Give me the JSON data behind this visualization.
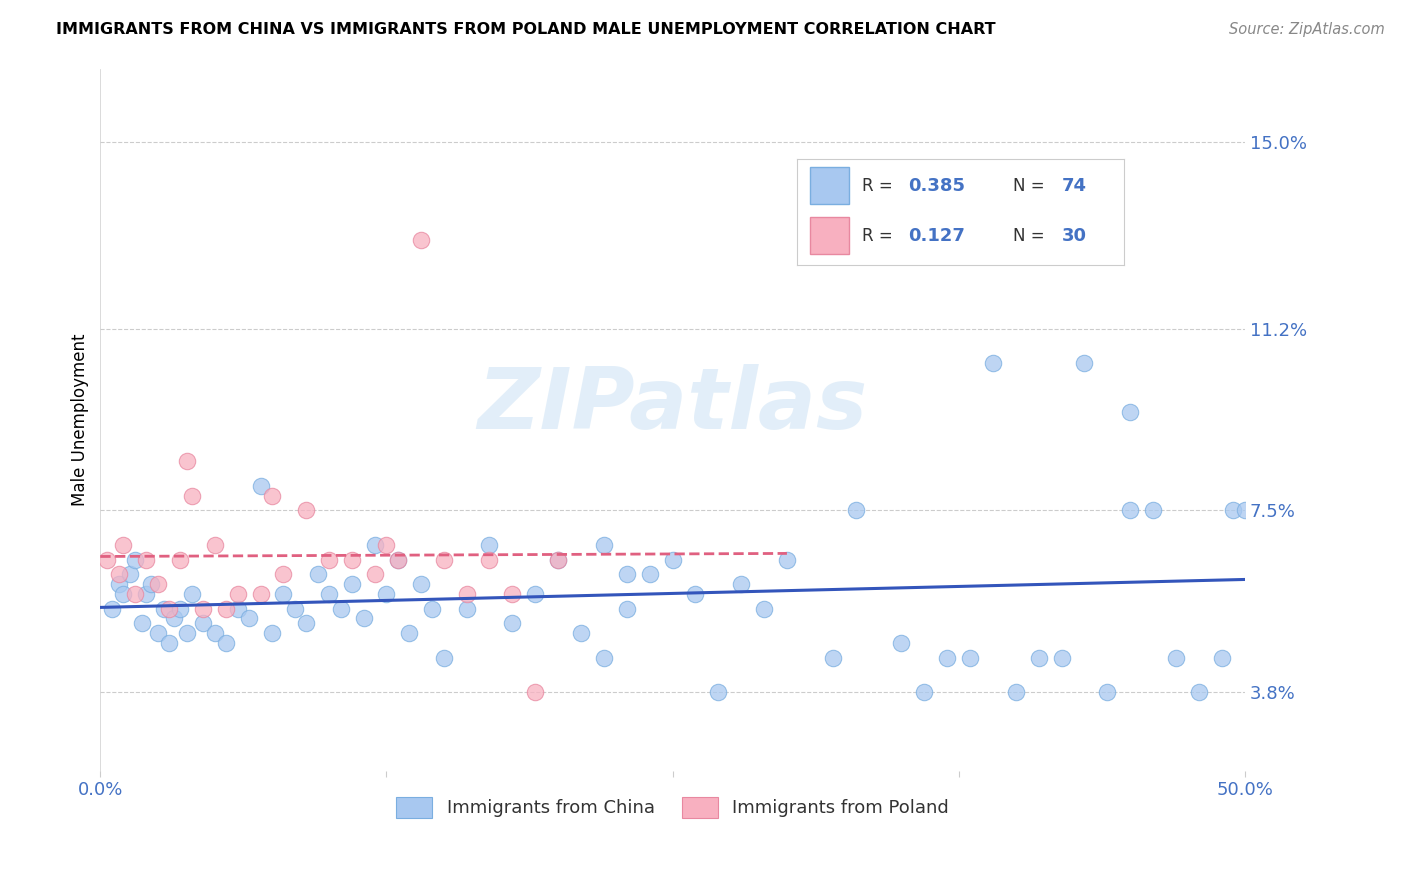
{
  "title": "IMMIGRANTS FROM CHINA VS IMMIGRANTS FROM POLAND MALE UNEMPLOYMENT CORRELATION CHART",
  "source": "Source: ZipAtlas.com",
  "ylabel": "Male Unemployment",
  "yticks": [
    3.8,
    7.5,
    11.2,
    15.0
  ],
  "ytick_labels": [
    "3.8%",
    "7.5%",
    "11.2%",
    "15.0%"
  ],
  "xlim": [
    0,
    50
  ],
  "ylim": [
    2.2,
    16.5
  ],
  "china_R": 0.385,
  "china_N": 74,
  "poland_R": 0.127,
  "poland_N": 30,
  "china_color": "#a8c8f0",
  "china_edge_color": "#7aaee0",
  "poland_color": "#f8b0c0",
  "poland_edge_color": "#e888a0",
  "china_line_color": "#3355bb",
  "poland_line_color": "#e06080",
  "watermark_color": "#d8e8f8",
  "legend_box_color": "#f5f5f5",
  "legend_border_color": "#cccccc",
  "tick_color": "#4472c4",
  "grid_color": "#cccccc",
  "china_scatter_x": [
    0.5,
    0.8,
    1.0,
    1.3,
    1.5,
    1.8,
    2.0,
    2.2,
    2.5,
    2.8,
    3.0,
    3.2,
    3.5,
    3.8,
    4.0,
    4.5,
    5.0,
    5.5,
    6.0,
    6.5,
    7.0,
    7.5,
    8.0,
    8.5,
    9.0,
    9.5,
    10.0,
    10.5,
    11.0,
    11.5,
    12.0,
    12.5,
    13.0,
    13.5,
    14.0,
    14.5,
    15.0,
    16.0,
    17.0,
    18.0,
    19.0,
    20.0,
    21.0,
    22.0,
    23.0,
    24.0,
    25.0,
    26.0,
    27.0,
    28.0,
    29.0,
    30.0,
    32.0,
    33.0,
    35.0,
    36.0,
    37.0,
    38.0,
    39.0,
    40.0,
    41.0,
    42.0,
    43.0,
    44.0,
    45.0,
    46.0,
    47.0,
    48.0,
    49.0,
    49.5,
    50.0,
    22.0,
    23.0,
    45.0
  ],
  "china_scatter_y": [
    5.5,
    6.0,
    5.8,
    6.2,
    6.5,
    5.2,
    5.8,
    6.0,
    5.0,
    5.5,
    4.8,
    5.3,
    5.5,
    5.0,
    5.8,
    5.2,
    5.0,
    4.8,
    5.5,
    5.3,
    8.0,
    5.0,
    5.8,
    5.5,
    5.2,
    6.2,
    5.8,
    5.5,
    6.0,
    5.3,
    6.8,
    5.8,
    6.5,
    5.0,
    6.0,
    5.5,
    4.5,
    5.5,
    6.8,
    5.2,
    5.8,
    6.5,
    5.0,
    4.5,
    5.5,
    6.2,
    6.5,
    5.8,
    3.8,
    6.0,
    5.5,
    6.5,
    4.5,
    7.5,
    4.8,
    3.8,
    4.5,
    4.5,
    10.5,
    3.8,
    4.5,
    4.5,
    10.5,
    3.8,
    7.5,
    7.5,
    4.5,
    3.8,
    4.5,
    7.5,
    7.5,
    6.8,
    6.2,
    9.5
  ],
  "poland_scatter_x": [
    0.3,
    0.8,
    1.0,
    1.5,
    2.0,
    2.5,
    3.0,
    3.5,
    4.0,
    4.5,
    5.0,
    5.5,
    6.0,
    7.0,
    8.0,
    9.0,
    10.0,
    11.0,
    12.0,
    13.0,
    14.0,
    15.0,
    16.0,
    17.0,
    18.0,
    19.0,
    20.0,
    3.8,
    7.5,
    12.5
  ],
  "poland_scatter_y": [
    6.5,
    6.2,
    6.8,
    5.8,
    6.5,
    6.0,
    5.5,
    6.5,
    7.8,
    5.5,
    6.8,
    5.5,
    5.8,
    5.8,
    6.2,
    7.5,
    6.5,
    6.5,
    6.2,
    6.5,
    13.0,
    6.5,
    5.8,
    6.5,
    5.8,
    3.8,
    6.5,
    8.5,
    7.8,
    6.8
  ],
  "china_trendline": [
    4.5,
    7.5
  ],
  "poland_trendline_x": [
    0,
    25
  ],
  "poland_trendline_y": [
    5.8,
    7.2
  ]
}
